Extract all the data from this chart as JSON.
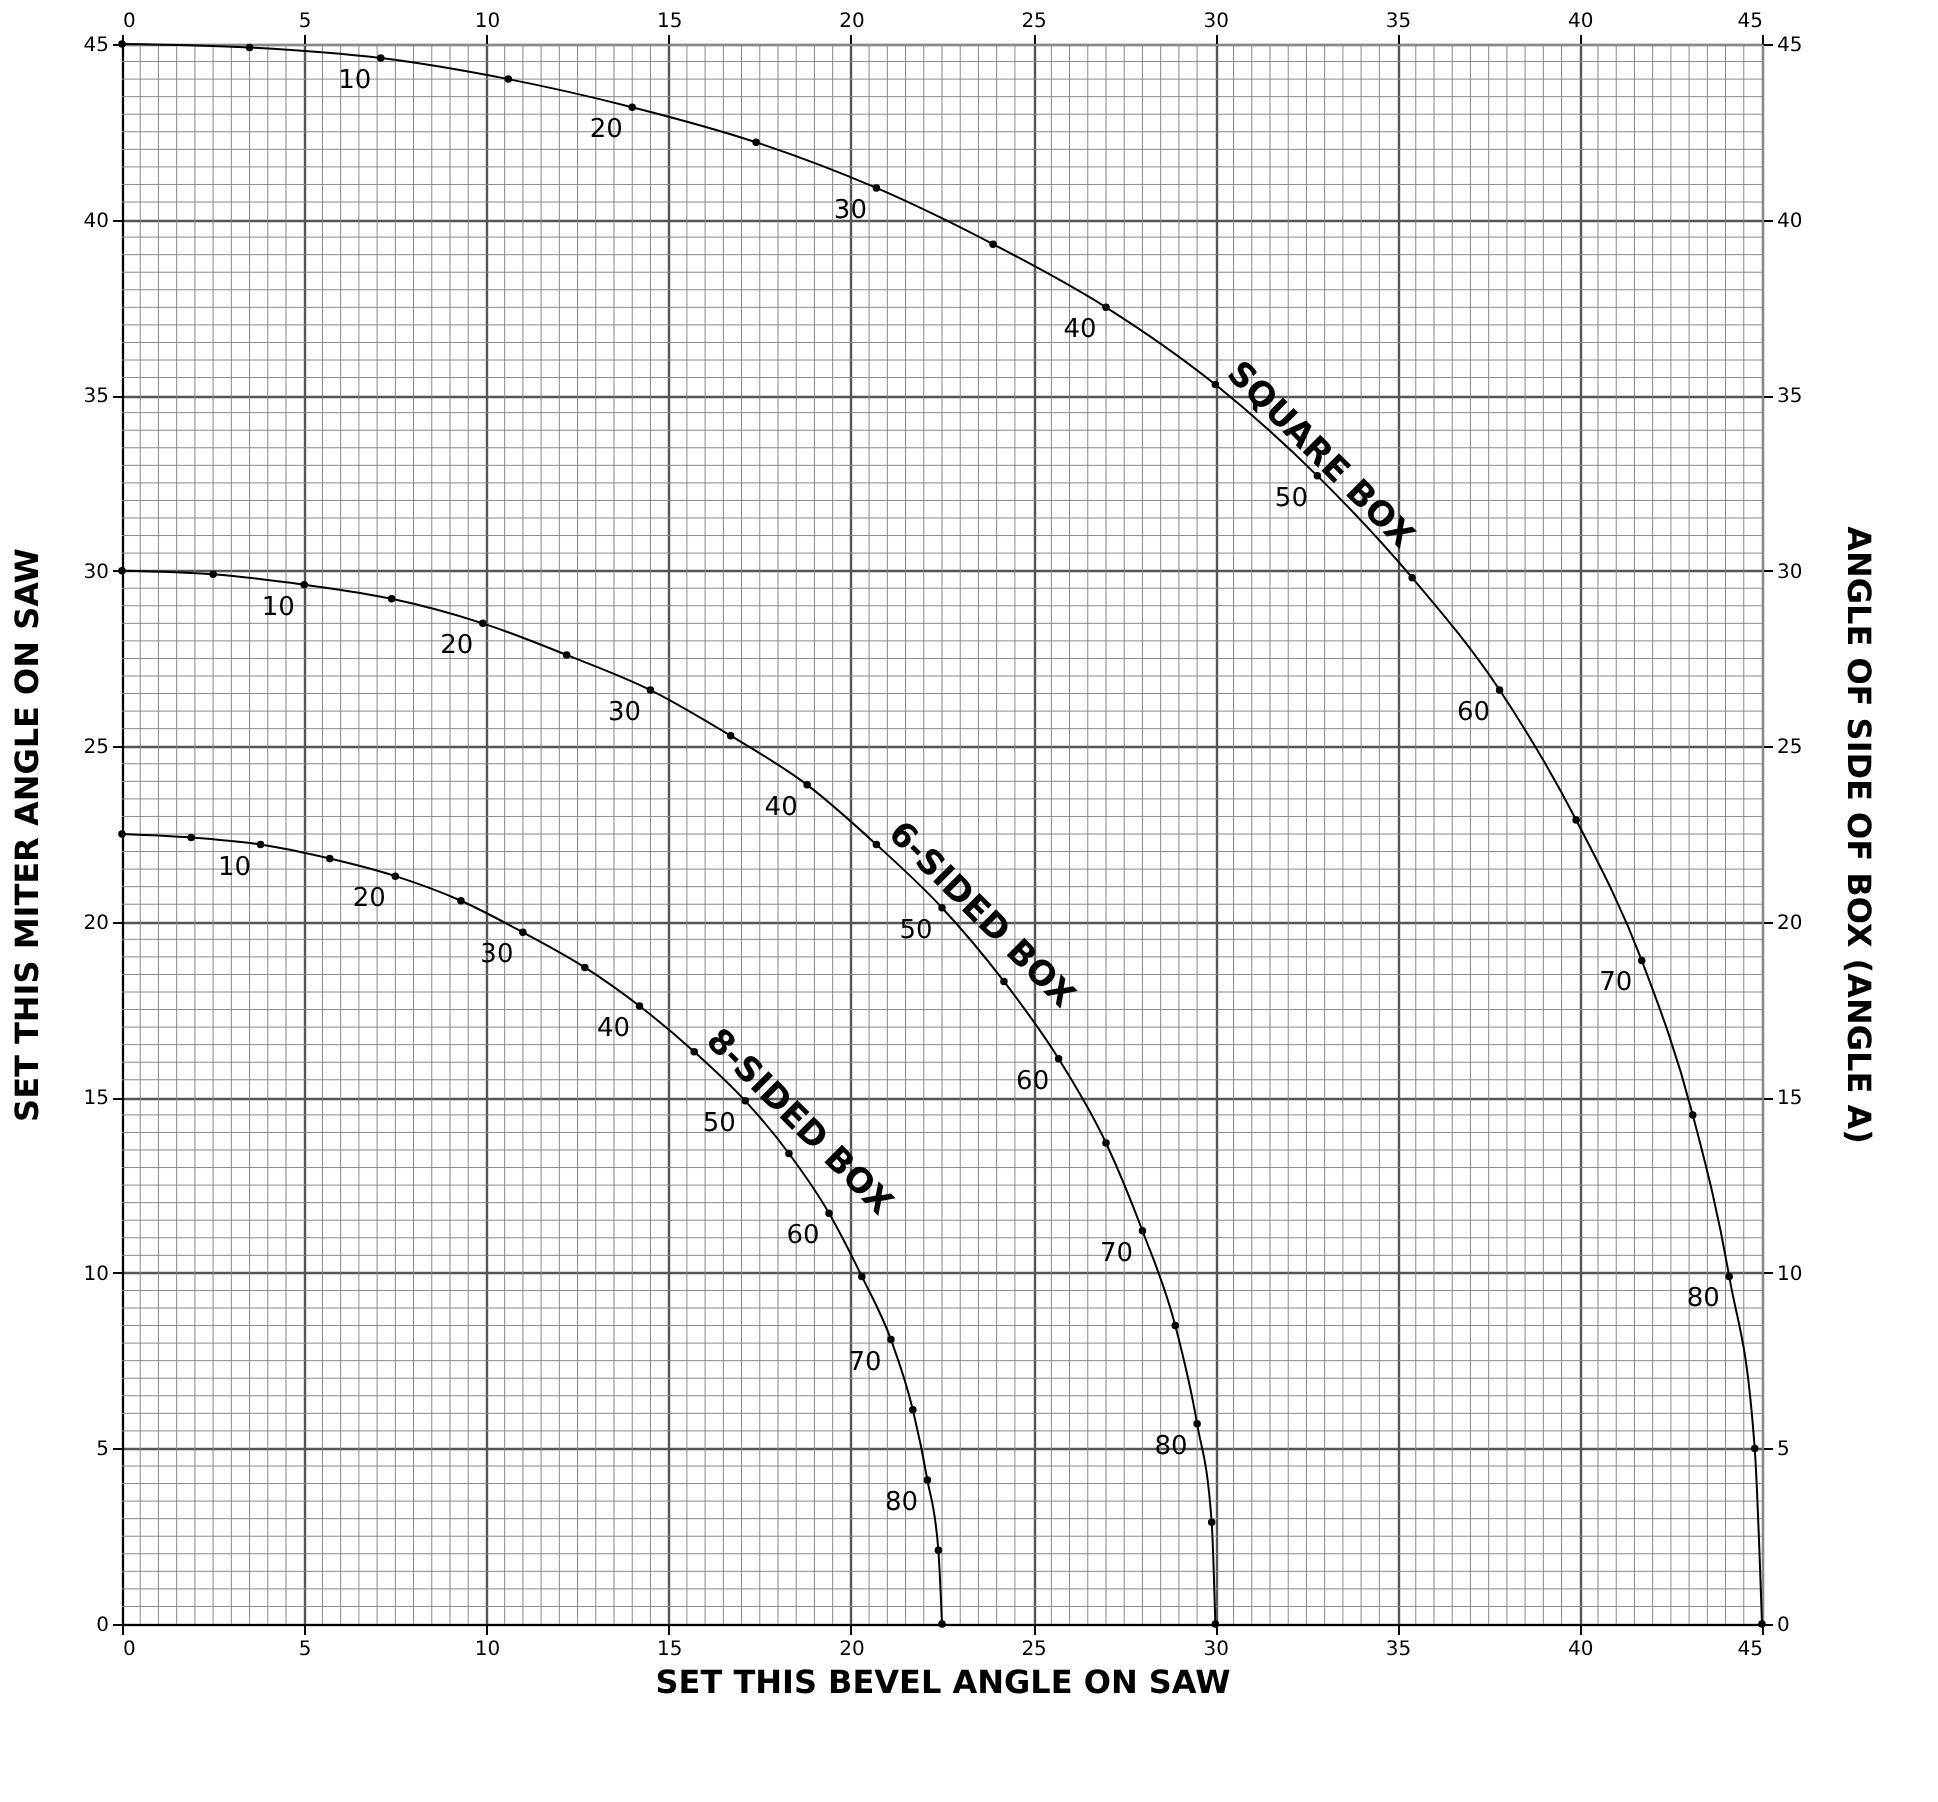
{
  "chart_data": {
    "type": "line",
    "xlabel": "SET THIS BEVEL ANGLE ON SAW",
    "ylabel": "SET THIS MITER ANGLE ON SAW",
    "y2label": "ANGLE OF SIDE OF BOX (ANGLE A)",
    "xlim": [
      0,
      45
    ],
    "xticks": [
      0,
      5,
      10,
      15,
      20,
      25,
      30,
      35,
      40,
      45
    ],
    "ylim": [
      0,
      45
    ],
    "yticks": [
      0,
      5,
      10,
      15,
      20,
      25,
      30,
      35,
      40,
      45
    ],
    "x2lim": [
      0,
      45
    ],
    "x2ticks": [
      0,
      5,
      10,
      15,
      20,
      25,
      30,
      35,
      40,
      45
    ],
    "y2lim": [
      0,
      45
    ],
    "y2ticks": [
      0,
      5,
      10,
      15,
      20,
      25,
      30,
      35,
      40,
      45
    ],
    "grid": true,
    "legend": false,
    "marker": "circle",
    "line_style": "solid",
    "series": [
      {
        "name": "SQUARE BOX",
        "color": "#000000",
        "x": [
          0,
          3.5,
          7.1,
          10.6,
          14.0,
          17.4,
          20.7,
          23.9,
          27.0,
          30.0,
          32.8,
          35.4,
          37.8,
          39.9,
          41.7,
          43.1,
          44.1,
          44.8,
          45
        ],
        "values": [
          45,
          44.9,
          44.6,
          44.0,
          43.2,
          42.2,
          40.9,
          39.3,
          37.5,
          35.3,
          32.7,
          29.8,
          26.6,
          22.9,
          18.9,
          14.5,
          9.9,
          5.0,
          0
        ]
      },
      {
        "name": "6-SIDED BOX",
        "color": "#000000",
        "x": [
          0,
          2.5,
          5.0,
          7.4,
          9.9,
          12.2,
          14.5,
          16.7,
          18.8,
          20.7,
          22.5,
          24.2,
          25.7,
          27.0,
          28.0,
          28.9,
          29.5,
          29.9,
          30
        ],
        "values": [
          30,
          29.9,
          29.6,
          29.2,
          28.5,
          27.6,
          26.6,
          25.3,
          23.9,
          22.2,
          20.4,
          18.3,
          16.1,
          13.7,
          11.2,
          8.5,
          5.7,
          2.9,
          0
        ]
      },
      {
        "name": "8-SIDED BOX",
        "color": "#000000",
        "x": [
          0,
          1.9,
          3.8,
          5.7,
          7.5,
          9.3,
          11.0,
          12.7,
          14.2,
          15.7,
          17.1,
          18.3,
          19.4,
          20.3,
          21.1,
          21.7,
          22.1,
          22.4,
          22.5
        ],
        "values": [
          22.5,
          22.4,
          22.2,
          21.8,
          21.3,
          20.6,
          19.7,
          18.7,
          17.6,
          16.3,
          14.9,
          13.4,
          11.7,
          9.9,
          8.1,
          6.1,
          4.1,
          2.1,
          0
        ]
      }
    ],
    "annotations": [
      {
        "text": "10",
        "x": 7.1,
        "y": 44.6
      },
      {
        "text": "20",
        "x": 14.0,
        "y": 43.2
      },
      {
        "text": "30",
        "x": 20.7,
        "y": 40.9
      },
      {
        "text": "40",
        "x": 27.0,
        "y": 37.5
      },
      {
        "text": "50",
        "x": 32.8,
        "y": 32.7
      },
      {
        "text": "60",
        "x": 37.8,
        "y": 26.6
      },
      {
        "text": "70",
        "x": 41.7,
        "y": 18.9
      },
      {
        "text": "80",
        "x": 44.1,
        "y": 9.9
      },
      {
        "text": "10",
        "x": 5.0,
        "y": 29.6
      },
      {
        "text": "20",
        "x": 9.9,
        "y": 28.5
      },
      {
        "text": "30",
        "x": 14.5,
        "y": 26.6
      },
      {
        "text": "40",
        "x": 18.8,
        "y": 23.9
      },
      {
        "text": "50",
        "x": 22.5,
        "y": 20.4
      },
      {
        "text": "60",
        "x": 25.7,
        "y": 16.1
      },
      {
        "text": "70",
        "x": 28.0,
        "y": 11.2
      },
      {
        "text": "80",
        "x": 29.5,
        "y": 5.7
      },
      {
        "text": "10",
        "x": 3.8,
        "y": 22.2
      },
      {
        "text": "20",
        "x": 7.5,
        "y": 21.3
      },
      {
        "text": "30",
        "x": 11.0,
        "y": 19.7
      },
      {
        "text": "40",
        "x": 14.2,
        "y": 17.6
      },
      {
        "text": "50",
        "x": 17.1,
        "y": 14.9
      },
      {
        "text": "60",
        "x": 19.4,
        "y": 11.7
      },
      {
        "text": "70",
        "x": 21.1,
        "y": 8.1
      },
      {
        "text": "80",
        "x": 22.1,
        "y": 4.1
      }
    ]
  }
}
